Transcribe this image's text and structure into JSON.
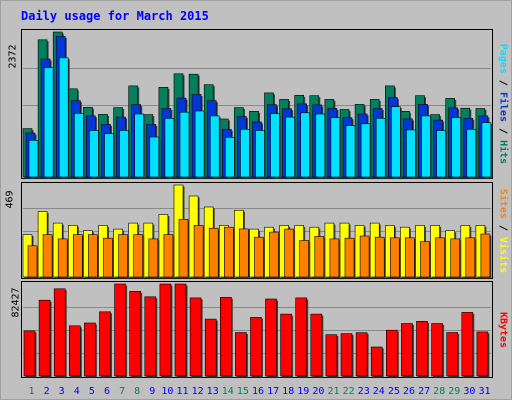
{
  "title": "Daily usage for March 2015",
  "colors": {
    "background": "#c0c0c0",
    "hits": "#00805c",
    "files": "#0038d8",
    "pages": "#00e0ff",
    "visits": "#ffff00",
    "sites": "#ff8000",
    "kbytes": "#ff0000",
    "title": "#0000ff",
    "grid": "#8a8a8a",
    "day_weekday": "#0000ff",
    "day_weekend": "#00805c"
  },
  "panels": {
    "hits": {
      "ymax_label": "2372",
      "label_parts": [
        {
          "text": "Pages",
          "color": "#00e0ff"
        },
        {
          "text": " / ",
          "color": "#000000"
        },
        {
          "text": "Files",
          "color": "#0038d8"
        },
        {
          "text": " / ",
          "color": "#000000"
        },
        {
          "text": "Hits",
          "color": "#00805c"
        }
      ]
    },
    "visits": {
      "ymax_label": "469",
      "label_parts": [
        {
          "text": "Sites",
          "color": "#ff8000"
        },
        {
          "text": " / ",
          "color": "#000000"
        },
        {
          "text": "Visits",
          "color": "#ffff00"
        }
      ]
    },
    "kbytes": {
      "ymax_label": "82427",
      "label_parts": [
        {
          "text": "KBytes",
          "color": "#ff0000"
        }
      ]
    }
  },
  "chart_data": {
    "type": "bar",
    "title": "Daily usage for March 2015",
    "categories": [
      "1",
      "2",
      "3",
      "4",
      "5",
      "6",
      "7",
      "8",
      "9",
      "10",
      "11",
      "12",
      "13",
      "14",
      "15",
      "16",
      "17",
      "18",
      "19",
      "20",
      "21",
      "22",
      "23",
      "24",
      "25",
      "26",
      "27",
      "28",
      "29",
      "30",
      "31"
    ],
    "weekend_days": [
      "1",
      "7",
      "8",
      "14",
      "15",
      "21",
      "22",
      "28",
      "29"
    ],
    "groups": [
      {
        "name": "Hits/Files/Pages",
        "ymax": 2372,
        "ylim": [
          0,
          2372
        ],
        "series": [
          {
            "name": "Hits",
            "values": [
              792,
              2245,
              2372,
              1443,
              1140,
              1024,
              1135,
              1490,
              1021,
              1467,
              1689,
              1682,
              1510,
              949,
              1135,
              1074,
              1375,
              1270,
              1336,
              1330,
              1270,
              1105,
              1187,
              1270,
              1490,
              1074,
              1330,
              1021,
              1285,
              1125,
              1120
            ]
          },
          {
            "name": "Files",
            "values": [
              720,
              1930,
              2300,
              1250,
              1000,
              860,
              980,
              1185,
              860,
              1120,
              1290,
              1350,
              1250,
              780,
              990,
              900,
              1185,
              1115,
              1195,
              1180,
              1120,
              970,
              1030,
              1120,
              1300,
              950,
              1190,
              930,
              1130,
              960,
              1000
            ]
          },
          {
            "name": "Pages",
            "values": [
              600,
              1790,
              1950,
              1040,
              760,
              710,
              760,
              1030,
              655,
              960,
              1060,
              1080,
              1000,
              650,
              780,
              760,
              1035,
              980,
              1050,
              1030,
              970,
              840,
              870,
              960,
              1150,
              770,
              1000,
              760,
              970,
              780,
              890
            ]
          }
        ]
      },
      {
        "name": "Visits/Sites",
        "ymax": 469,
        "ylim": [
          0,
          469
        ],
        "series": [
          {
            "name": "Visits",
            "values": [
              216,
              334,
              275,
              263,
              236,
              263,
              244,
              275,
              275,
              318,
              469,
              413,
              357,
              263,
              340,
              244,
              254,
              263,
              263,
              254,
              275,
              275,
              263,
              275,
              263,
              254,
              263,
              263,
              236,
              263,
              263
            ]
          },
          {
            "name": "Sites",
            "values": [
              159,
              216,
              194,
              216,
              216,
              198,
              216,
              216,
              194,
              216,
              294,
              263,
              249,
              254,
              245,
              203,
              229,
              244,
              186,
              207,
              194,
              198,
              209,
              203,
              200,
              200,
              181,
              200,
              194,
              200,
              219
            ]
          }
        ]
      },
      {
        "name": "KBytes",
        "ymax": 82427,
        "ylim": [
          0,
          82427
        ],
        "series": [
          {
            "name": "KBytes",
            "values": [
              40440,
              67905,
              78150,
              45000,
              47500,
              57500,
              82427,
              75870,
              71000,
              82427,
              82427,
              70000,
              51000,
              70500,
              39000,
              52500,
              69000,
              55500,
              70000,
              55500,
              37000,
              38000,
              38800,
              26000,
              41000,
              47000,
              49000,
              47000,
              39000,
              57000,
              39500
            ]
          }
        ]
      }
    ]
  }
}
